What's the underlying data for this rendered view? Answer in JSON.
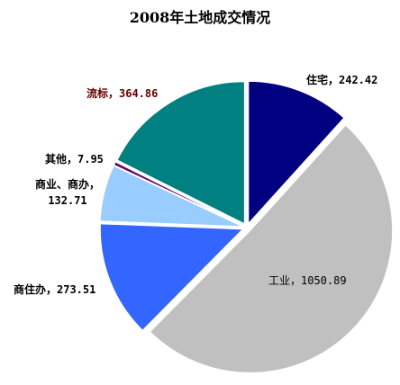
{
  "chart_data": {
    "type": "pie",
    "title": "2008年土地成交情况",
    "categories": [
      "住宅",
      "工业",
      "商住办",
      "商业、商办",
      "其他",
      "流标"
    ],
    "values": [
      242.42,
      1050.89,
      273.51,
      132.71,
      7.95,
      364.86
    ],
    "value_labels": [
      "住宅，242.42",
      "工业，1050.89",
      "商住办，273.51",
      "商业、商办，132.71",
      "其他，7.95",
      "流标，364.86"
    ],
    "colors": [
      "#000080",
      "#c0c0c0",
      "#3366ff",
      "#99ccff",
      "#660066",
      "#008080"
    ]
  }
}
